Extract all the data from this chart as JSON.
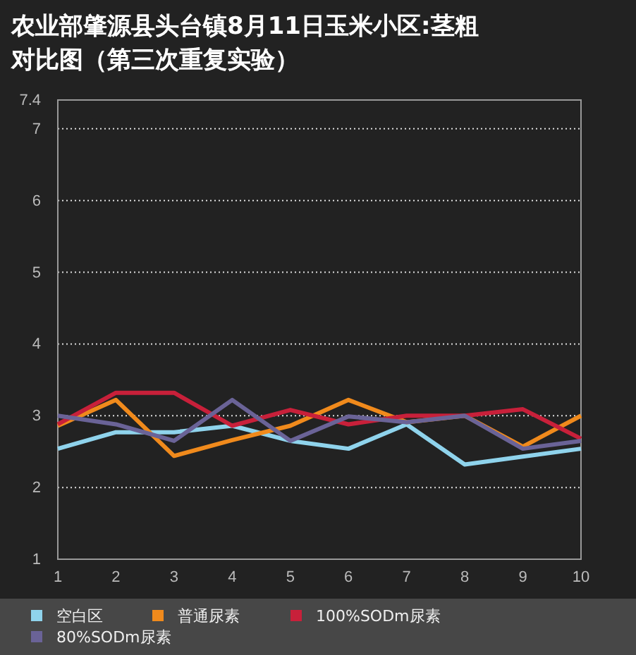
{
  "chart_data": {
    "type": "line",
    "title": "农业部肇源县头台镇8月11日玉米小区:茎粗对比图（第三次重复实验）",
    "x": [
      1,
      2,
      3,
      4,
      5,
      6,
      7,
      8,
      9,
      10
    ],
    "xlim": [
      1,
      10
    ],
    "xticks": [
      1,
      2,
      3,
      4,
      5,
      6,
      7,
      8,
      9,
      10
    ],
    "ylim": [
      1,
      7.4
    ],
    "yticks": [
      1,
      2,
      3,
      4,
      5,
      6,
      7,
      7.4
    ],
    "grid": "y",
    "legend": "bottom",
    "marker": "none",
    "line_style": "solid",
    "series": [
      {
        "name": "空白区",
        "color": "#8fd3ec",
        "values": [
          2.54,
          2.77,
          2.77,
          2.86,
          2.65,
          2.54,
          2.88,
          2.32,
          2.43,
          2.54
        ]
      },
      {
        "name": "普通尿素",
        "color": "#f08a1c",
        "values": [
          2.86,
          3.22,
          2.44,
          2.66,
          2.86,
          3.22,
          2.91,
          3.0,
          2.57,
          3.0
        ]
      },
      {
        "name": "100%SODm尿素",
        "color": "#c8203a",
        "values": [
          2.88,
          3.32,
          3.32,
          2.86,
          3.08,
          2.88,
          3.0,
          3.0,
          3.09,
          2.68
        ]
      },
      {
        "name": "80%SODm尿素",
        "color": "#6a6397",
        "values": [
          3.0,
          2.88,
          2.65,
          3.22,
          2.65,
          2.99,
          2.91,
          3.0,
          2.54,
          2.65
        ]
      }
    ]
  }
}
